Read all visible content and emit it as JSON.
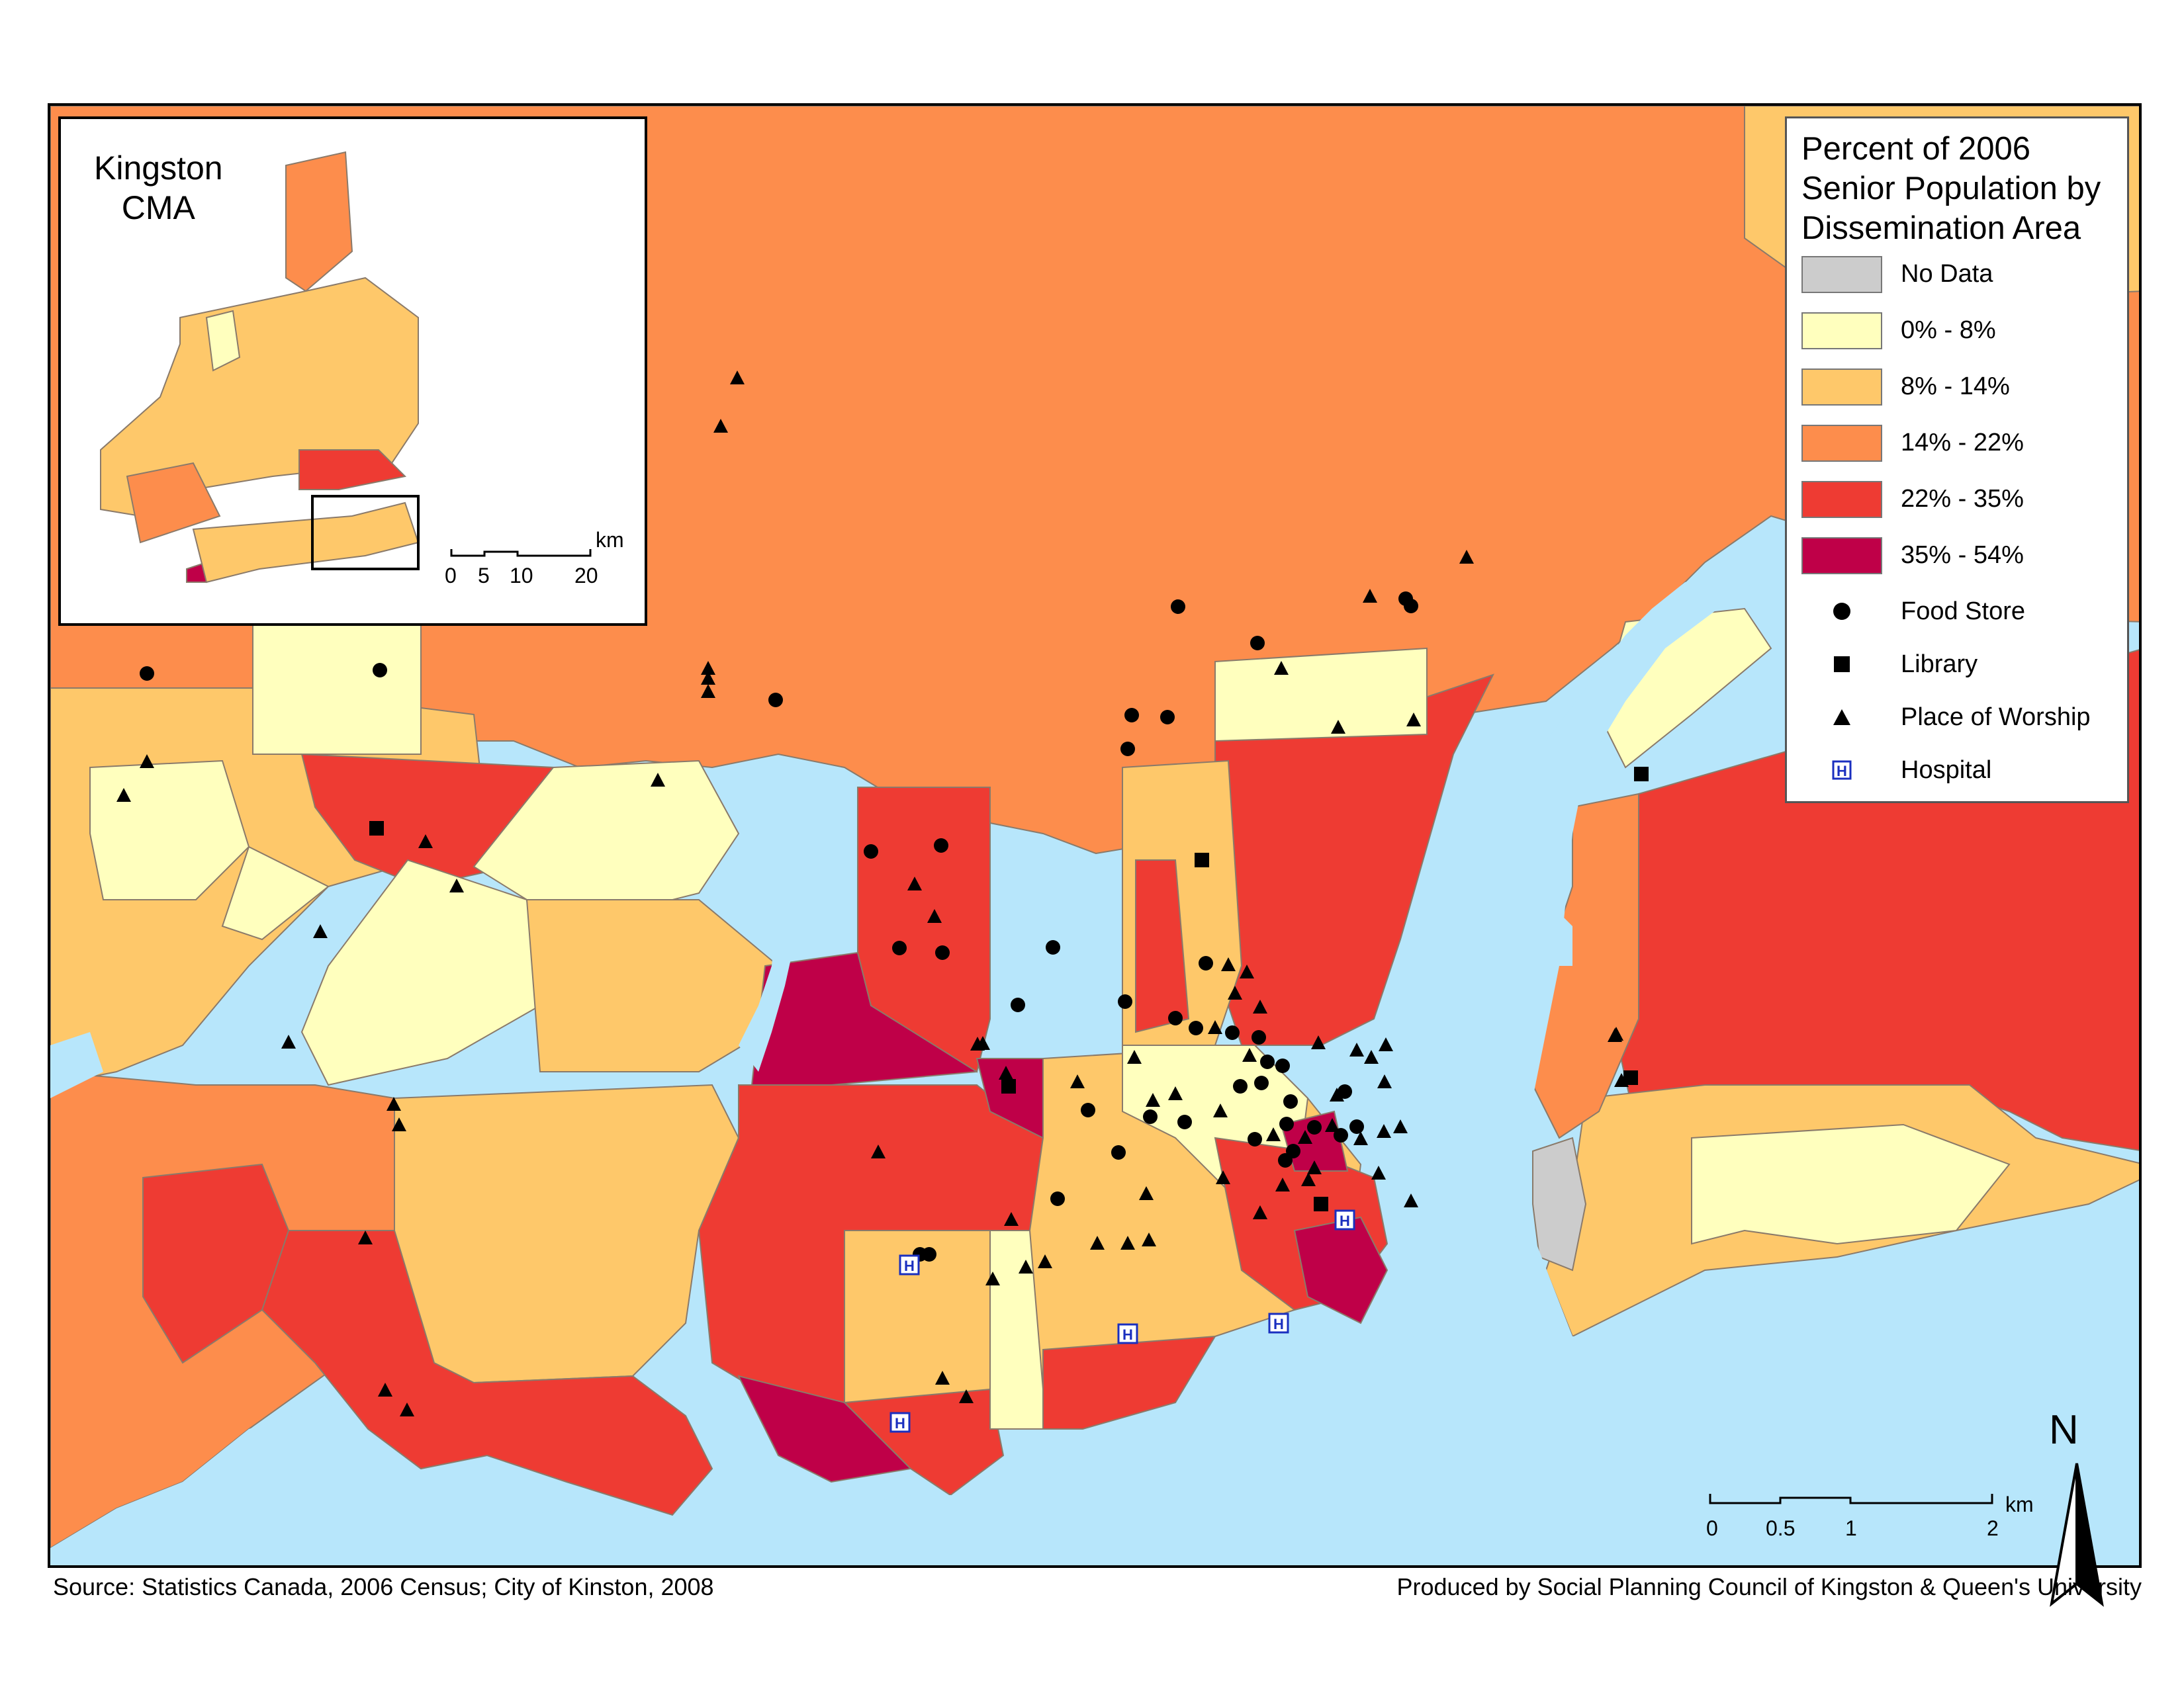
{
  "title": "Percent of 2006 Senior Population by Dissemination Area",
  "title_lines": [
    "Percent of 2006",
    "Senior Population by",
    "Dissemination Area"
  ],
  "legend": {
    "classes": [
      {
        "label": "No Data",
        "color": "#cccccc"
      },
      {
        "label": "0% - 8%",
        "color": "#ffffbe"
      },
      {
        "label": "8% - 14%",
        "color": "#fec86a"
      },
      {
        "label": "14% - 22%",
        "color": "#fd8d4c"
      },
      {
        "label": "22% - 35%",
        "color": "#ee3b33"
      },
      {
        "label": "35% - 54%",
        "color": "#bf0048"
      }
    ],
    "symbols": [
      {
        "label": "Food Store",
        "icon": "circle-icon"
      },
      {
        "label": "Library",
        "icon": "square-icon"
      },
      {
        "label": "Place of Worship",
        "icon": "triangle-icon"
      },
      {
        "label": "Hospital",
        "icon": "hospital-h-icon"
      }
    ]
  },
  "inset": {
    "title_lines": [
      "Kingston",
      "CMA"
    ],
    "scale_unit": "km",
    "scale_ticks": [
      "0",
      "5",
      "10",
      "20"
    ]
  },
  "scale_bar": {
    "unit": "km",
    "ticks": [
      "0",
      "0.5",
      "1",
      "2"
    ]
  },
  "north_arrow": "N",
  "source": "Source: Statistics Canada, 2006 Census; City of Kinston, 2008",
  "credit": "Produced by Social Planning Council of Kingston & Queen's University",
  "colors": {
    "water": "#b7e6fb",
    "boundary": "#8a7a6a"
  }
}
